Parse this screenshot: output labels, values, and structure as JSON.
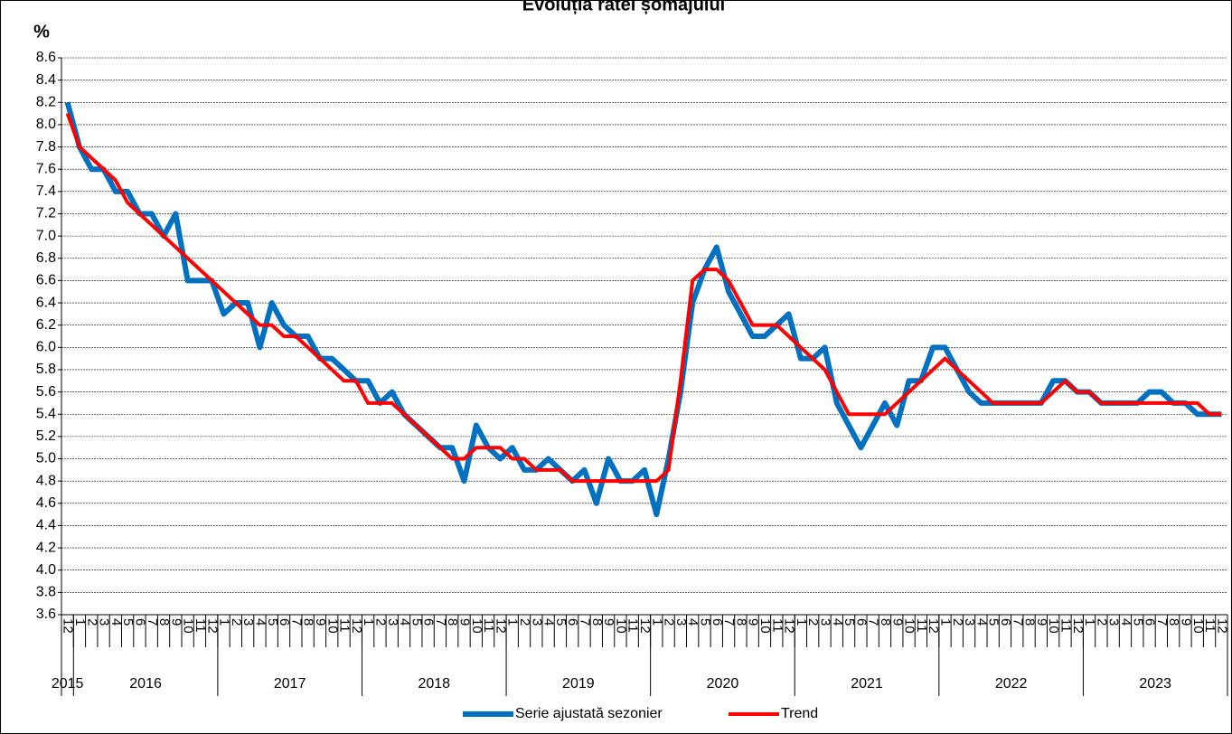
{
  "chart_data": {
    "type": "line",
    "title": "Evoluția ratei șomajului",
    "y_label": "%",
    "categories": [
      "12",
      "1",
      "2",
      "3",
      "4",
      "5",
      "6",
      "7",
      "8",
      "9",
      "10",
      "11",
      "12",
      "1",
      "2",
      "3",
      "4",
      "5",
      "6",
      "7",
      "8",
      "9",
      "10",
      "11",
      "12",
      "1",
      "2",
      "3",
      "4",
      "5",
      "6",
      "7",
      "8",
      "9",
      "10",
      "11",
      "12",
      "1",
      "2",
      "3",
      "4",
      "5",
      "6",
      "7",
      "8",
      "9",
      "10",
      "11",
      "12",
      "1",
      "2",
      "3",
      "4",
      "5",
      "6",
      "7",
      "8",
      "9",
      "10",
      "11",
      "12",
      "1",
      "2",
      "3",
      "4",
      "5",
      "6",
      "7",
      "8",
      "9",
      "10",
      "11",
      "12",
      "1",
      "2",
      "3",
      "4",
      "5",
      "6",
      "7",
      "8",
      "9",
      "10",
      "11",
      "12",
      "1",
      "2",
      "3",
      "4",
      "5",
      "6",
      "7",
      "8",
      "9",
      "10",
      "11",
      "12"
    ],
    "years": [
      "2015",
      "2016",
      "2017",
      "2018",
      "2019",
      "2020",
      "2021",
      "2022",
      "2023"
    ],
    "series": [
      {
        "name": "Serie ajustată sezonier",
        "color": "#0070c0",
        "values": [
          8.2,
          7.8,
          7.6,
          7.6,
          7.4,
          7.4,
          7.2,
          7.2,
          7.0,
          7.2,
          6.6,
          6.6,
          6.6,
          6.3,
          6.4,
          6.4,
          6.0,
          6.4,
          6.2,
          6.1,
          6.1,
          5.9,
          5.9,
          5.8,
          5.7,
          5.7,
          5.5,
          5.6,
          5.4,
          5.3,
          5.2,
          5.1,
          5.1,
          4.8,
          5.3,
          5.1,
          5.0,
          5.1,
          4.9,
          4.9,
          5.0,
          4.9,
          4.8,
          4.9,
          4.6,
          5.0,
          4.8,
          4.8,
          4.9,
          4.5,
          5.0,
          5.6,
          6.4,
          6.7,
          6.9,
          6.5,
          6.3,
          6.1,
          6.1,
          6.2,
          6.3,
          5.9,
          5.9,
          6.0,
          5.5,
          5.3,
          5.1,
          5.3,
          5.5,
          5.3,
          5.7,
          5.7,
          6.0,
          6.0,
          5.8,
          5.6,
          5.5,
          5.5,
          5.5,
          5.5,
          5.5,
          5.5,
          5.7,
          5.7,
          5.6,
          5.6,
          5.5,
          5.5,
          5.5,
          5.5,
          5.6,
          5.6,
          5.5,
          5.5,
          5.4,
          5.4,
          5.4
        ]
      },
      {
        "name": "Trend",
        "color": "#ff0000",
        "values": [
          8.1,
          7.8,
          7.7,
          7.6,
          7.5,
          7.3,
          7.2,
          7.1,
          7.0,
          6.9,
          6.8,
          6.7,
          6.6,
          6.5,
          6.4,
          6.3,
          6.2,
          6.2,
          6.1,
          6.1,
          6.0,
          5.9,
          5.8,
          5.7,
          5.7,
          5.5,
          5.5,
          5.5,
          5.4,
          5.3,
          5.2,
          5.1,
          5.0,
          5.0,
          5.1,
          5.1,
          5.1,
          5.0,
          5.0,
          4.9,
          4.9,
          4.9,
          4.8,
          4.8,
          4.8,
          4.8,
          4.8,
          4.8,
          4.8,
          4.8,
          4.9,
          5.7,
          6.6,
          6.7,
          6.7,
          6.6,
          6.4,
          6.2,
          6.2,
          6.2,
          6.1,
          6.0,
          5.9,
          5.8,
          5.6,
          5.4,
          5.4,
          5.4,
          5.4,
          5.5,
          5.6,
          5.7,
          5.8,
          5.9,
          5.8,
          5.7,
          5.6,
          5.5,
          5.5,
          5.5,
          5.5,
          5.5,
          5.6,
          5.7,
          5.6,
          5.6,
          5.5,
          5.5,
          5.5,
          5.5,
          5.5,
          5.5,
          5.5,
          5.5,
          5.5,
          5.4,
          5.4
        ]
      }
    ],
    "ylim": [
      3.6,
      8.6
    ],
    "yticks": [
      3.6,
      3.8,
      {
        "value": 4,
        "label": "4.0"
      },
      4.2,
      4.4,
      4.6,
      4.8,
      {
        "value": 5,
        "label": "5.0"
      },
      5.2,
      5.4,
      5.6,
      5.8,
      {
        "value": 6,
        "label": "6.0"
      },
      6.2,
      6.4,
      6.6,
      6.8,
      {
        "value": 7,
        "label": "7.0"
      },
      7.2,
      7.4,
      7.6,
      7.8,
      {
        "value": 8,
        "label": "8.0"
      },
      8.2,
      8.4,
      8.6
    ],
    "grid": true,
    "legend": "bottom"
  }
}
